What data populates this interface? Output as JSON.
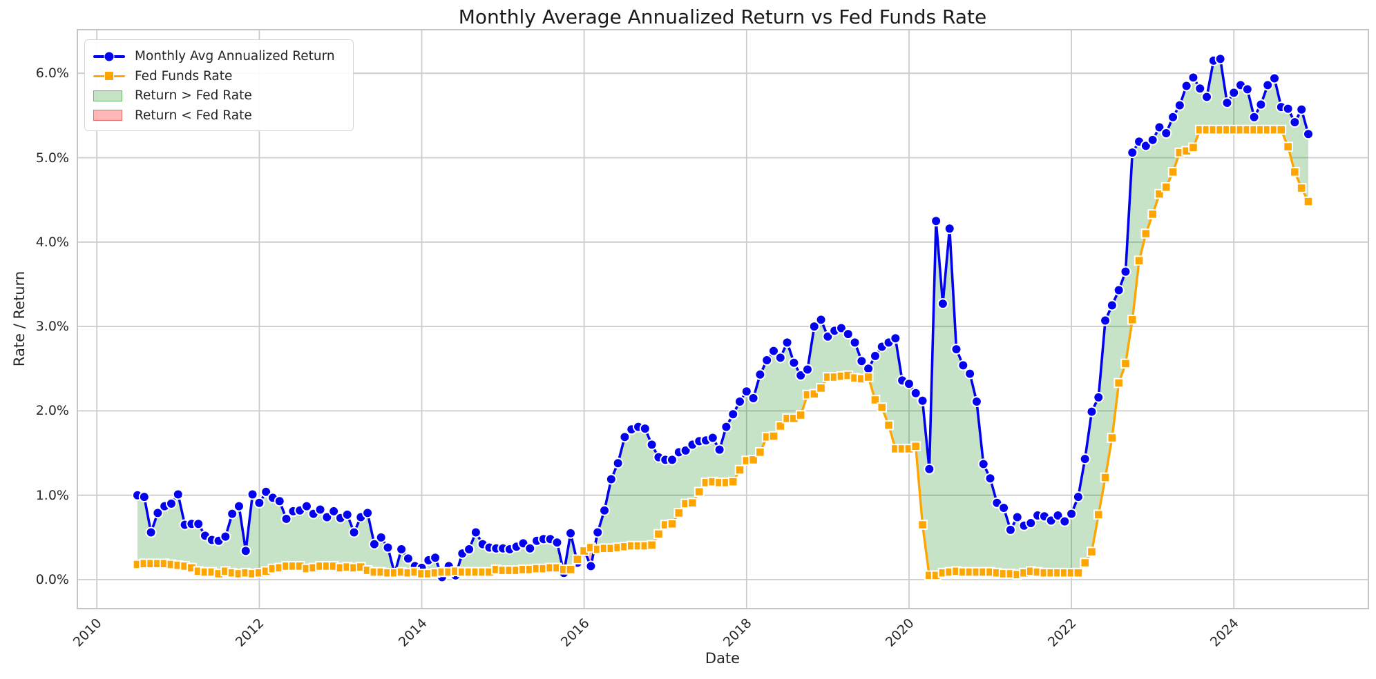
{
  "title": "Monthly Average Annualized Return vs Fed Funds Rate",
  "axes": {
    "x_label": "Date",
    "y_label": "Rate / Return"
  },
  "legend": {
    "items": [
      {
        "label": "Monthly Avg Annualized Return",
        "kind": "line-circle-marker",
        "color": "#0202f0"
      },
      {
        "label": "Fed Funds Rate",
        "kind": "line-square-marker",
        "color": "#ffa500"
      },
      {
        "label": "Return > Fed Rate",
        "kind": "patch",
        "color": "green"
      },
      {
        "label": "Return < Fed Rate",
        "kind": "patch",
        "color": "red"
      }
    ]
  },
  "colors": {
    "return_line": "#0202f0",
    "fed_line": "#ffa500",
    "marker_edge": "#ffffff",
    "fill_above": "rgba(0,128,0,0.22)",
    "fill_below": "rgba(255,0,0,0.28)",
    "fill_above_swatch_border": "rgba(0,128,0,0.45)",
    "fill_below_swatch_border": "rgba(220,60,60,0.65)",
    "grid": "#cccccc",
    "spine": "#c4c4c4",
    "text": "#262626"
  },
  "chart_data": {
    "type": "line",
    "title": "Monthly Average Annualized Return vs Fed Funds Rate",
    "xlabel": "Date",
    "ylabel": "Rate / Return",
    "x_start": "2010-07",
    "x_end": "2024-12",
    "x_freq": "monthly",
    "n_points": 174,
    "x_tick_labels": [
      "2010",
      "2012",
      "2014",
      "2016",
      "2018",
      "2020",
      "2022",
      "2024"
    ],
    "y_tick_labels": [
      "0.0%",
      "1.0%",
      "2.0%",
      "3.0%",
      "4.0%",
      "5.0%",
      "6.0%"
    ],
    "ylim": [
      -0.34,
      6.52
    ],
    "grid": true,
    "legend_position": "upper-left",
    "series": [
      {
        "name": "Monthly Avg Annualized Return",
        "color": "#0202f0",
        "marker": "circle",
        "unit": "%",
        "values": [
          1.0,
          0.98,
          0.56,
          0.79,
          0.87,
          0.9,
          1.01,
          0.65,
          0.66,
          0.66,
          0.52,
          0.47,
          0.46,
          0.51,
          0.78,
          0.87,
          0.34,
          1.01,
          0.91,
          1.04,
          0.97,
          0.93,
          0.72,
          0.81,
          0.82,
          0.87,
          0.78,
          0.83,
          0.74,
          0.81,
          0.73,
          0.77,
          0.56,
          0.74,
          0.79,
          0.42,
          0.5,
          0.38,
          0.07,
          0.36,
          0.25,
          0.16,
          0.14,
          0.23,
          0.26,
          0.03,
          0.16,
          0.05,
          0.31,
          0.36,
          0.56,
          0.42,
          0.38,
          0.37,
          0.37,
          0.36,
          0.39,
          0.43,
          0.37,
          0.46,
          0.48,
          0.48,
          0.44,
          0.08,
          0.55,
          0.2,
          0.35,
          0.16,
          0.56,
          0.82,
          1.19,
          1.38,
          1.69,
          1.78,
          1.81,
          1.79,
          1.6,
          1.45,
          1.42,
          1.42,
          1.51,
          1.53,
          1.6,
          1.64,
          1.65,
          1.68,
          1.54,
          1.81,
          1.96,
          2.11,
          2.23,
          2.15,
          2.43,
          2.6,
          2.71,
          2.63,
          2.81,
          2.57,
          2.42,
          2.49,
          3.0,
          3.08,
          2.88,
          2.95,
          2.98,
          2.91,
          2.81,
          2.59,
          2.5,
          2.65,
          2.76,
          2.81,
          2.86,
          2.36,
          2.32,
          2.21,
          2.12,
          1.31,
          4.25,
          3.27,
          4.16,
          2.73,
          2.54,
          2.44,
          2.11,
          1.37,
          1.2,
          0.91,
          0.85,
          0.59,
          0.74,
          0.64,
          0.67,
          0.76,
          0.75,
          0.7,
          0.76,
          0.69,
          0.78,
          0.98,
          1.43,
          1.99,
          2.16,
          3.07,
          3.25,
          3.43,
          3.65,
          5.06,
          5.19,
          5.14,
          5.21,
          5.36,
          5.29,
          5.48,
          5.62,
          5.85,
          5.95,
          5.82,
          5.72,
          6.15,
          6.17,
          5.65,
          5.77,
          5.86,
          5.81,
          5.48,
          5.63,
          5.86,
          5.94,
          5.6,
          5.58,
          5.42,
          5.57,
          5.28
        ]
      },
      {
        "name": "Fed Funds Rate",
        "color": "#ffa500",
        "marker": "square",
        "unit": "%",
        "values": [
          0.18,
          0.19,
          0.19,
          0.19,
          0.19,
          0.18,
          0.17,
          0.16,
          0.14,
          0.1,
          0.09,
          0.09,
          0.07,
          0.1,
          0.08,
          0.07,
          0.08,
          0.07,
          0.08,
          0.1,
          0.13,
          0.14,
          0.16,
          0.16,
          0.16,
          0.13,
          0.14,
          0.16,
          0.16,
          0.16,
          0.14,
          0.15,
          0.14,
          0.15,
          0.11,
          0.09,
          0.09,
          0.08,
          0.08,
          0.09,
          0.08,
          0.09,
          0.07,
          0.07,
          0.08,
          0.09,
          0.09,
          0.1,
          0.09,
          0.09,
          0.09,
          0.09,
          0.09,
          0.12,
          0.11,
          0.11,
          0.11,
          0.12,
          0.12,
          0.13,
          0.13,
          0.14,
          0.14,
          0.12,
          0.12,
          0.24,
          0.34,
          0.38,
          0.36,
          0.37,
          0.37,
          0.38,
          0.39,
          0.4,
          0.4,
          0.4,
          0.41,
          0.54,
          0.65,
          0.66,
          0.79,
          0.9,
          0.91,
          1.04,
          1.15,
          1.16,
          1.15,
          1.15,
          1.16,
          1.3,
          1.41,
          1.42,
          1.51,
          1.69,
          1.7,
          1.82,
          1.91,
          1.91,
          1.95,
          2.19,
          2.2,
          2.27,
          2.4,
          2.4,
          2.41,
          2.42,
          2.39,
          2.38,
          2.4,
          2.13,
          2.04,
          1.83,
          1.55,
          1.55,
          1.55,
          1.58,
          0.65,
          0.05,
          0.05,
          0.08,
          0.09,
          0.1,
          0.09,
          0.09,
          0.09,
          0.09,
          0.09,
          0.08,
          0.07,
          0.07,
          0.06,
          0.08,
          0.1,
          0.09,
          0.08,
          0.08,
          0.08,
          0.08,
          0.08,
          0.08,
          0.2,
          0.33,
          0.77,
          1.21,
          1.68,
          2.33,
          2.56,
          3.08,
          3.78,
          4.1,
          4.33,
          4.57,
          4.65,
          4.83,
          5.06,
          5.08,
          5.12,
          5.33,
          5.33,
          5.33,
          5.33,
          5.33,
          5.33,
          5.33,
          5.33,
          5.33,
          5.33,
          5.33,
          5.33,
          5.33,
          5.13,
          4.83,
          4.64,
          4.48
        ]
      }
    ],
    "fills": [
      {
        "name": "Return > Fed Rate",
        "color": "green",
        "alpha": 0.3
      },
      {
        "name": "Return < Fed Rate",
        "color": "red",
        "alpha": 0.3
      }
    ]
  }
}
